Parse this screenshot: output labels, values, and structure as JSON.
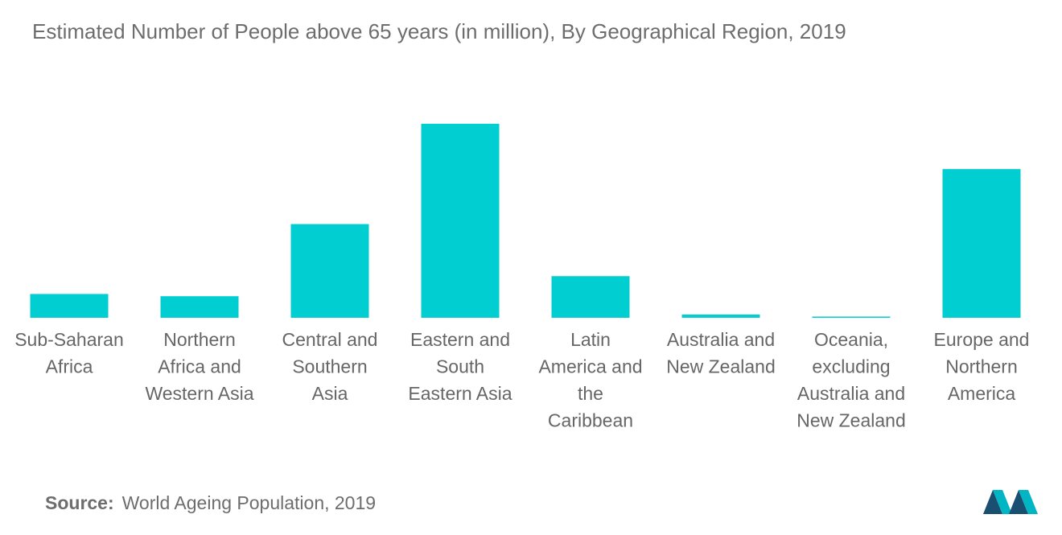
{
  "title": "Estimated Number of People above 65 years (in million), By Geographical Region, 2019",
  "source": {
    "label": "Source:",
    "text": "World Ageing Population, 2019"
  },
  "colors": {
    "bar": "#00CED1",
    "text": "#6D6D6D",
    "logo_dark": "#1B4F72",
    "logo_light": "#00B5C4"
  },
  "chart_data": {
    "type": "bar",
    "title": "Estimated Number of People above 65 years (in million), By Geographical Region, 2019",
    "xlabel": "",
    "ylabel": "",
    "grid": false,
    "legend": "none",
    "ylim": [
      0,
      290
    ],
    "categories": [
      [
        "Sub-Saharan",
        "Africa"
      ],
      [
        "Northern",
        "Africa and",
        "Western Asia"
      ],
      [
        "Central and",
        "Southern",
        "Asia"
      ],
      [
        "Eastern and",
        "South",
        "Eastern Asia"
      ],
      [
        "Latin",
        "America and",
        "the",
        "Caribbean"
      ],
      [
        "Australia and",
        "New Zealand"
      ],
      [
        "Oceania,",
        "excluding",
        "Australia and",
        "New Zealand"
      ],
      [
        "Europe and",
        "Northern",
        "America"
      ]
    ],
    "values": [
      32,
      29,
      126,
      261,
      56,
      4.4,
      0.5,
      200
    ]
  }
}
